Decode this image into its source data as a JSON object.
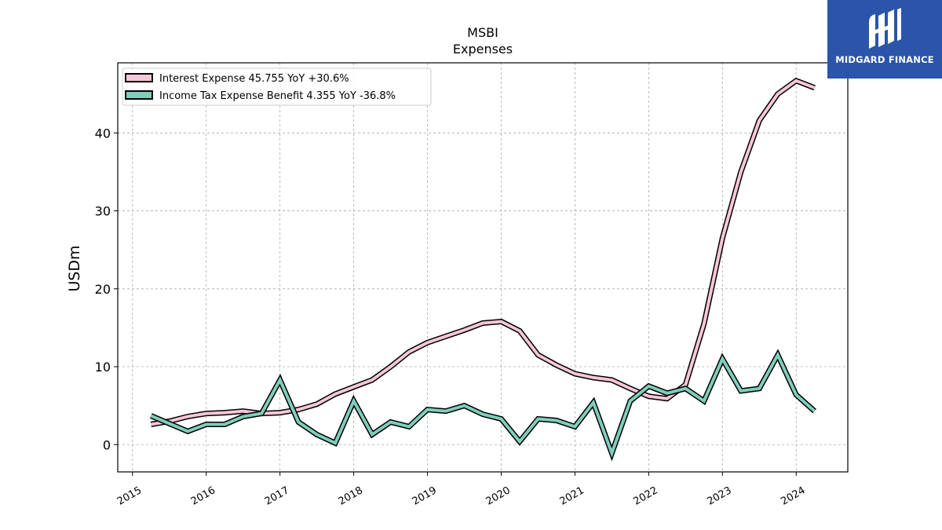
{
  "brand": {
    "name": "MIDGARD FINANCE",
    "bg_color": "#2a55a8"
  },
  "chart_data": {
    "type": "line",
    "title": "MSBI",
    "subtitle": "Expenses",
    "ylabel": "USDm",
    "xlabel": "",
    "xlim": [
      2014.8,
      2024.7
    ],
    "ylim": [
      -3.5,
      49
    ],
    "yticks": [
      0,
      10,
      20,
      30,
      40
    ],
    "xticks": [
      2015,
      2016,
      2017,
      2018,
      2019,
      2020,
      2021,
      2022,
      2023,
      2024
    ],
    "grid": true,
    "legend_position": "top-left",
    "series": [
      {
        "name": "Interest Expense",
        "legend_label": "Interest Expense  45.755 YoY +30.6%",
        "color": "#f7c6d9",
        "x": [
          2015.25,
          2015.5,
          2015.75,
          2016.0,
          2016.25,
          2016.5,
          2016.75,
          2017.0,
          2017.25,
          2017.5,
          2017.75,
          2018.0,
          2018.25,
          2018.5,
          2018.75,
          2019.0,
          2019.25,
          2019.5,
          2019.75,
          2020.0,
          2020.25,
          2020.5,
          2020.75,
          2021.0,
          2021.25,
          2021.5,
          2021.75,
          2022.0,
          2022.25,
          2022.5,
          2022.75,
          2023.0,
          2023.25,
          2023.5,
          2023.75,
          2024.0,
          2024.25
        ],
        "values": [
          2.6,
          3.0,
          3.6,
          4.0,
          4.1,
          4.3,
          4.0,
          4.1,
          4.5,
          5.2,
          6.5,
          7.4,
          8.3,
          10.0,
          11.9,
          13.1,
          13.9,
          14.7,
          15.6,
          15.8,
          14.6,
          11.5,
          10.2,
          9.1,
          8.6,
          8.3,
          7.2,
          6.2,
          5.9,
          7.7,
          15.5,
          26.5,
          35.0,
          41.6,
          45.0,
          46.7,
          45.8
        ]
      },
      {
        "name": "Income Tax Expense Benefit",
        "legend_label": "Income Tax Expense Benefit  4.355 YoY -36.8%",
        "color": "#7fcdbb",
        "x": [
          2015.25,
          2015.5,
          2015.75,
          2016.0,
          2016.25,
          2016.5,
          2016.75,
          2017.0,
          2017.25,
          2017.5,
          2017.75,
          2018.0,
          2018.25,
          2018.5,
          2018.75,
          2019.0,
          2019.25,
          2019.5,
          2019.75,
          2020.0,
          2020.25,
          2020.5,
          2020.75,
          2021.0,
          2021.25,
          2021.5,
          2021.75,
          2022.0,
          2022.25,
          2022.5,
          2022.75,
          2023.0,
          2023.25,
          2023.5,
          2023.75,
          2024.0,
          2024.25
        ],
        "values": [
          3.7,
          2.7,
          1.7,
          2.6,
          2.6,
          3.6,
          4.0,
          8.3,
          2.9,
          1.3,
          0.2,
          5.6,
          1.3,
          2.9,
          2.3,
          4.5,
          4.3,
          5.0,
          3.9,
          3.3,
          0.4,
          3.3,
          3.1,
          2.3,
          5.4,
          -1.1,
          5.6,
          7.5,
          6.6,
          7.2,
          5.6,
          11.0,
          6.9,
          7.2,
          11.5,
          6.4,
          4.3
        ]
      }
    ]
  }
}
